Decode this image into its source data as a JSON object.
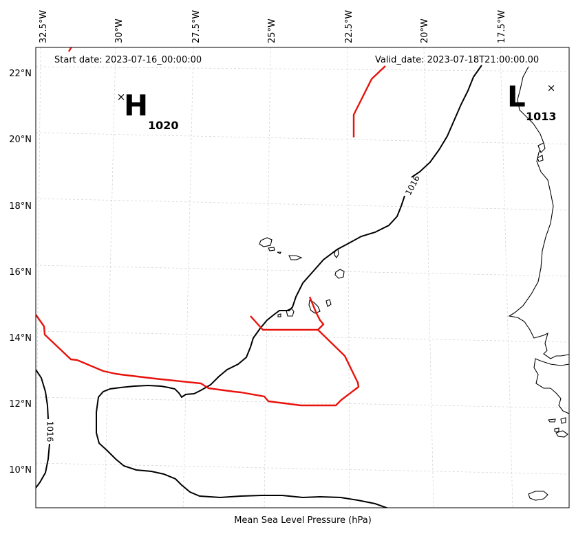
{
  "map": {
    "start_date": "Start date: 2023-07-16_00:00:00",
    "valid_date": "Valid_date: 2023-07-18T21:00:00.00",
    "caption": "Mean Sea Level Pressure (hPa)",
    "lon_labels": [
      "32.5°W",
      "30°W",
      "27.5°W",
      "25°W",
      "22.5°W",
      "20°W",
      "17.5°W"
    ],
    "lat_labels": [
      "22°N",
      "20°N",
      "18°N",
      "16°N",
      "14°N",
      "12°N",
      "10°N"
    ],
    "pressure_centers": [
      {
        "letter": "H",
        "value": "1020",
        "marker": "×"
      },
      {
        "letter": "L",
        "value": "1013",
        "marker": "×"
      }
    ],
    "isobar_labels": [
      "1016",
      "1016"
    ],
    "colors": {
      "front": "#e8120c",
      "isobar": "#000000",
      "grid": "#cfcfcf"
    }
  }
}
